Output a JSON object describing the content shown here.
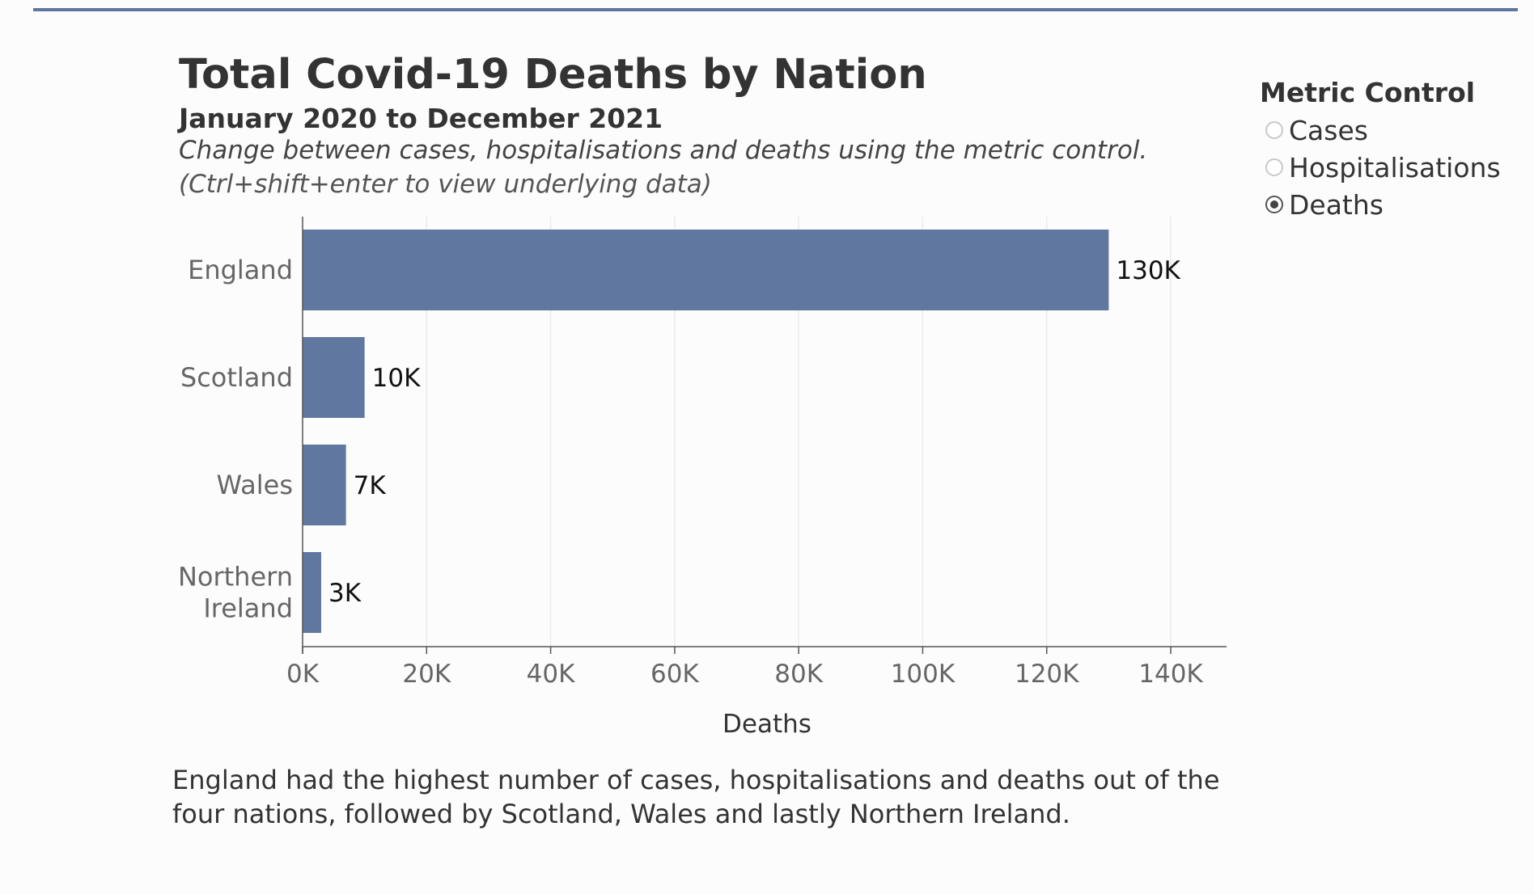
{
  "header": {
    "title": "Total Covid-19 Deaths by Nation",
    "subtitle": "January 2020 to December 2021",
    "instruction": "Change between cases, hospitalisations and deaths using the metric control.",
    "hint": "(Ctrl+shift+enter to view underlying data)"
  },
  "metric_control": {
    "title": "Metric Control",
    "options": [
      {
        "label": "Cases",
        "selected": false
      },
      {
        "label": "Hospitalisations",
        "selected": false
      },
      {
        "label": "Deaths",
        "selected": true
      }
    ]
  },
  "colors": {
    "bar": "#6078a0",
    "accent_rule": "#5f77a0",
    "gridline": "#ececec",
    "axis": "#555555"
  },
  "chart_data": {
    "type": "bar",
    "orientation": "horizontal",
    "categories": [
      [
        "England"
      ],
      [
        "Scotland"
      ],
      [
        "Wales"
      ],
      [
        "Northern",
        "Ireland"
      ]
    ],
    "values": [
      130000,
      10000,
      7000,
      3000
    ],
    "data_labels": [
      "130K",
      "10K",
      "7K",
      "3K"
    ],
    "xlabel": "Deaths",
    "xlim": [
      0,
      149000
    ],
    "xticks": [
      0,
      20000,
      40000,
      60000,
      80000,
      100000,
      120000,
      140000
    ],
    "xtick_labels": [
      "0K",
      "20K",
      "40K",
      "60K",
      "80K",
      "100K",
      "120K",
      "140K"
    ],
    "grid": true,
    "legend": "none"
  },
  "footnote": "England had the highest number of cases, hospitalisations and deaths out of the four nations, followed by Scotland, Wales and lastly Northern Ireland."
}
